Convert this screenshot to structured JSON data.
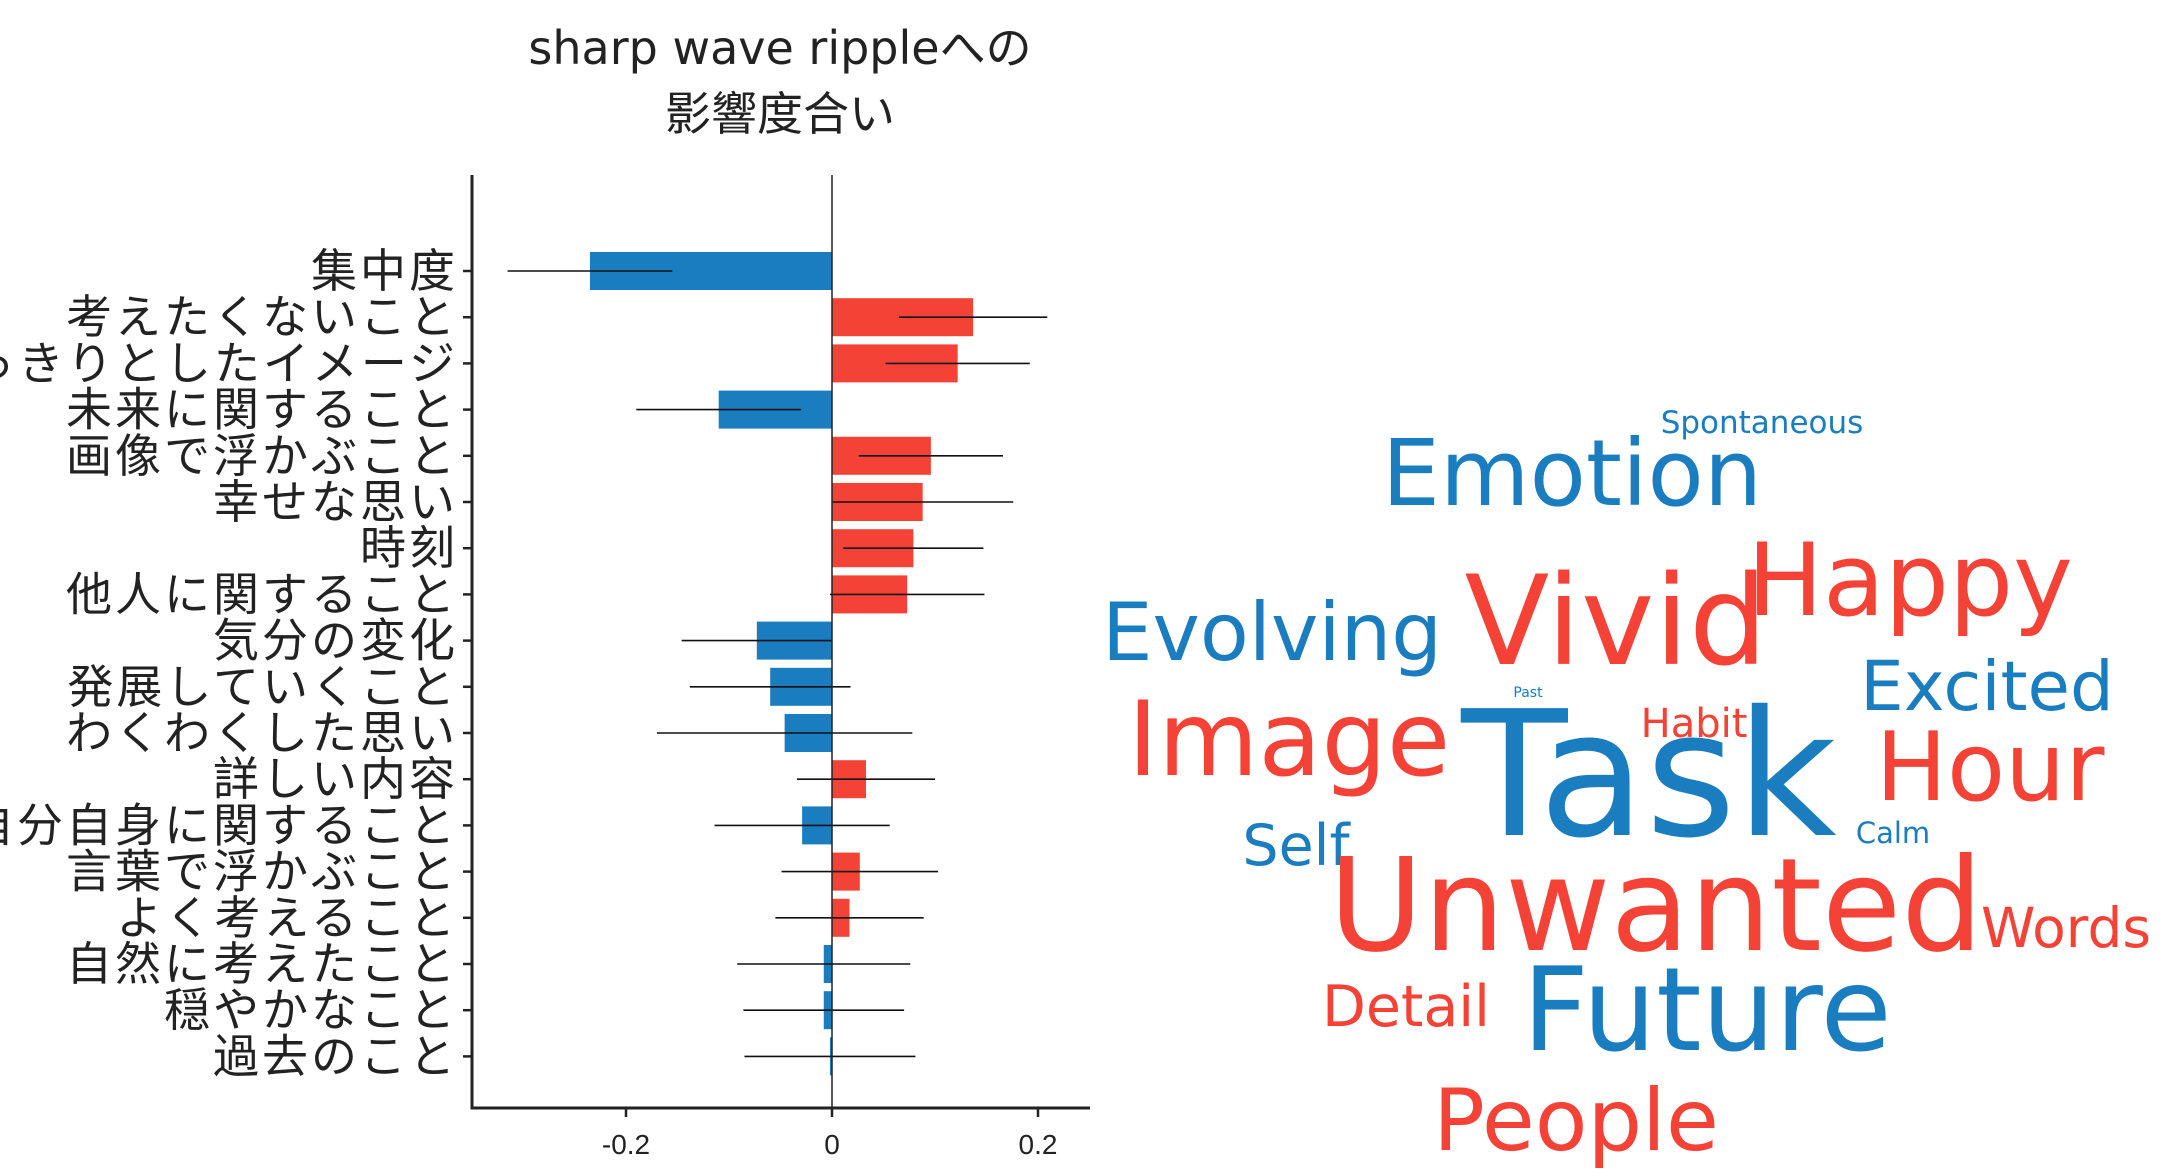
{
  "chart_data": [
    {
      "type": "bar",
      "orientation": "horizontal",
      "title_lines": [
        "sharp wave rippleへの",
        "影響度合い"
      ],
      "xlim": [
        -0.35,
        0.25
      ],
      "xticks": [
        {
          "value": -0.2,
          "label": "-0.2"
        },
        {
          "value": 0,
          "label": "0"
        },
        {
          "value": 0.2,
          "label": "0.2"
        }
      ],
      "colors": {
        "positive": "#f44336",
        "negative": "#1a7dc0"
      },
      "categories": [
        "集中度",
        "考えたくないこと",
        "はっきりとしたイメージ",
        "未来に関すること",
        "画像で浮かぶこと",
        "幸せな思い",
        "時刻",
        "他人に関すること",
        "気分の変化",
        "発展していくこと",
        "わくわくした思い",
        "詳しい内容",
        "自分自身に関すること",
        "言葉で浮かぶこと",
        "よく考えること",
        "自然に考えたこと",
        "穏やかなこと",
        "過去のこと"
      ],
      "values": [
        -0.235,
        0.137,
        0.122,
        -0.11,
        0.096,
        0.088,
        0.079,
        0.073,
        -0.073,
        -0.06,
        -0.046,
        0.033,
        -0.029,
        0.027,
        0.017,
        -0.008,
        -0.008,
        -0.002
      ],
      "errors": [
        0.08,
        0.072,
        0.07,
        0.08,
        0.07,
        0.088,
        0.068,
        0.075,
        0.073,
        0.078,
        0.124,
        0.067,
        0.085,
        0.076,
        0.072,
        0.084,
        0.078,
        0.083
      ]
    },
    {
      "type": "wordcloud",
      "words": [
        {
          "text": "Spontaneous",
          "weight": 3,
          "color": "#1a7dc0"
        },
        {
          "text": "Emotion",
          "weight": 9,
          "color": "#1a7dc0"
        },
        {
          "text": "Vivid",
          "weight": 12,
          "color": "#f44336"
        },
        {
          "text": "Happy",
          "weight": 10,
          "color": "#f44336"
        },
        {
          "text": "Evolving",
          "weight": 7,
          "color": "#1a7dc0"
        },
        {
          "text": "Excited",
          "weight": 7,
          "color": "#1a7dc0"
        },
        {
          "text": "Past",
          "weight": 1,
          "color": "#1a7dc0"
        },
        {
          "text": "Habit",
          "weight": 4,
          "color": "#f44336"
        },
        {
          "text": "Image",
          "weight": 10,
          "color": "#f44336"
        },
        {
          "text": "Task",
          "weight": 16,
          "color": "#1a7dc0"
        },
        {
          "text": "Hour",
          "weight": 9,
          "color": "#f44336"
        },
        {
          "text": "Self",
          "weight": 6,
          "color": "#1a7dc0"
        },
        {
          "text": "Calm",
          "weight": 3,
          "color": "#1a7dc0"
        },
        {
          "text": "Unwanted",
          "weight": 13,
          "color": "#f44336"
        },
        {
          "text": "Words",
          "weight": 6,
          "color": "#f44336"
        },
        {
          "text": "Detail",
          "weight": 6,
          "color": "#f44336"
        },
        {
          "text": "Future",
          "weight": 11,
          "color": "#1a7dc0"
        },
        {
          "text": "People",
          "weight": 9,
          "color": "#f44336"
        }
      ]
    }
  ]
}
